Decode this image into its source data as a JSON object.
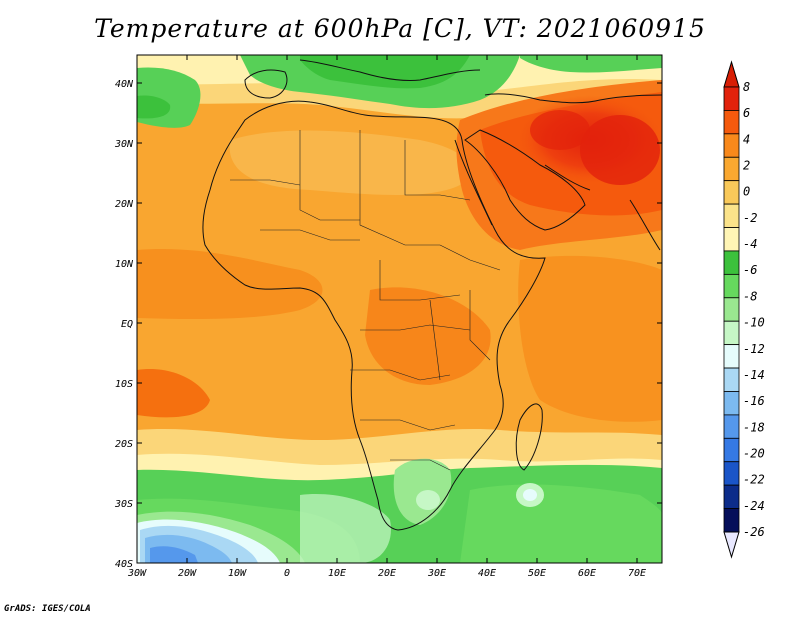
{
  "title": "Temperature at 600hPa [C], VT: 2021060915",
  "credit": "GrADS: IGES/COLA",
  "map": {
    "lat_range": [
      -40,
      45
    ],
    "lon_range": [
      -30,
      75
    ],
    "lat_ticks": [
      "40N",
      "30N",
      "20N",
      "10N",
      "EQ",
      "10S",
      "20S",
      "30S",
      "40S"
    ],
    "lon_ticks": [
      "30W",
      "20W",
      "10W",
      "0",
      "10E",
      "20E",
      "30E",
      "40E",
      "50E",
      "60E",
      "70E"
    ]
  },
  "colorbar": {
    "labels": [
      "8",
      "6",
      "4",
      "2",
      "0",
      "-2",
      "-4",
      "-6",
      "-8",
      "-10",
      "-12",
      "-14",
      "-16",
      "-18",
      "-20",
      "-22",
      "-24",
      "-26"
    ],
    "colors": [
      "#e2220c",
      "#f55a0d",
      "#f9891b",
      "#faa830",
      "#f9c95a",
      "#fbe38a",
      "#fff5b5",
      "#3cc13c",
      "#66d95e",
      "#9ae890",
      "#c6f7c6",
      "#e6fcfc",
      "#aad8f4",
      "#7cbaf0",
      "#5598ec",
      "#3579e4",
      "#1a55c8",
      "#0c2c8a",
      "#050f5a"
    ],
    "top_color": "#d81e05",
    "bottom_color": "#e8e8ff"
  }
}
